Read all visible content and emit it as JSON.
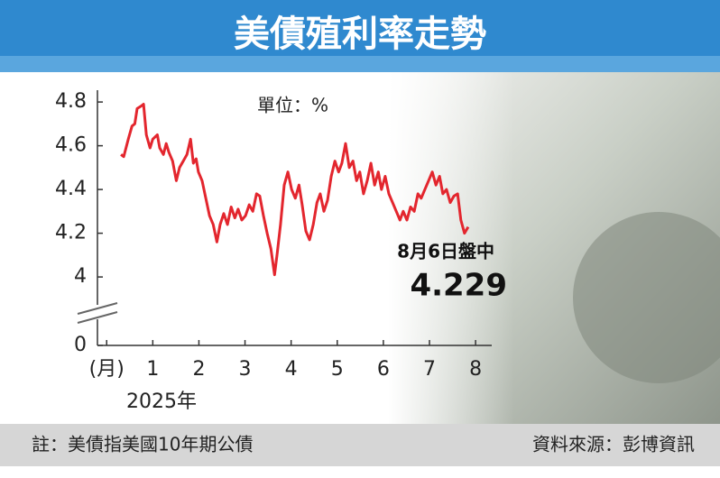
{
  "chart_data": {
    "type": "line",
    "title": "美債殖利率走勢",
    "unit_label": "單位：%",
    "x_label": "2025年",
    "annotation": "8月6日盤中",
    "note": "註：美債指美國10年期公債",
    "source": "資料來源：彭博資訊",
    "color": "#e3262e",
    "xlim": [
      -0.2,
      8.35
    ],
    "xticks": [
      {
        "value": 0,
        "label": "(月)"
      },
      1,
      2,
      3,
      4,
      5,
      6,
      7,
      8
    ],
    "ylim": [
      3.687,
      4.854
    ],
    "yticks": [
      0,
      4.0,
      4.2,
      4.4,
      4.6,
      4.8
    ],
    "axis_break": true,
    "x": [
      0.31,
      0.37,
      0.47,
      0.55,
      0.61,
      0.66,
      0.74,
      0.8,
      0.86,
      0.94,
      1.0,
      1.1,
      1.15,
      1.23,
      1.29,
      1.35,
      1.43,
      1.51,
      1.58,
      1.66,
      1.74,
      1.82,
      1.88,
      1.94,
      1.99,
      2.07,
      2.15,
      2.23,
      2.31,
      2.39,
      2.46,
      2.54,
      2.62,
      2.7,
      2.78,
      2.85,
      2.93,
      3.01,
      3.09,
      3.17,
      3.25,
      3.32,
      3.4,
      3.48,
      3.56,
      3.64,
      3.7,
      3.77,
      3.85,
      3.93,
      4.01,
      4.09,
      4.17,
      4.24,
      4.32,
      4.4,
      4.48,
      4.56,
      4.63,
      4.71,
      4.79,
      4.87,
      4.95,
      5.03,
      5.1,
      5.18,
      5.26,
      5.34,
      5.42,
      5.49,
      5.57,
      5.65,
      5.73,
      5.81,
      5.89,
      5.96,
      6.04,
      6.12,
      6.2,
      6.28,
      6.36,
      6.43,
      6.51,
      6.59,
      6.67,
      6.75,
      6.82,
      6.9,
      6.98,
      7.06,
      7.14,
      7.22,
      7.29,
      7.37,
      7.45,
      7.53,
      7.61,
      7.68,
      7.76,
      7.84
    ],
    "values": [
      4.56,
      4.55,
      4.63,
      4.69,
      4.7,
      4.77,
      4.78,
      4.79,
      4.65,
      4.59,
      4.63,
      4.65,
      4.59,
      4.56,
      4.61,
      4.57,
      4.53,
      4.44,
      4.5,
      4.53,
      4.56,
      4.63,
      4.52,
      4.54,
      4.48,
      4.44,
      4.36,
      4.28,
      4.24,
      4.16,
      4.24,
      4.29,
      4.24,
      4.32,
      4.27,
      4.31,
      4.26,
      4.28,
      4.33,
      4.3,
      4.38,
      4.37,
      4.28,
      4.2,
      4.13,
      4.01,
      4.11,
      4.24,
      4.42,
      4.48,
      4.4,
      4.36,
      4.42,
      4.33,
      4.21,
      4.17,
      4.24,
      4.34,
      4.38,
      4.3,
      4.35,
      4.46,
      4.53,
      4.48,
      4.52,
      4.61,
      4.5,
      4.53,
      4.44,
      4.48,
      4.38,
      4.44,
      4.52,
      4.42,
      4.48,
      4.4,
      4.46,
      4.38,
      4.34,
      4.3,
      4.26,
      4.3,
      4.26,
      4.32,
      4.3,
      4.38,
      4.36,
      4.4,
      4.44,
      4.48,
      4.42,
      4.46,
      4.38,
      4.4,
      4.34,
      4.37,
      4.38,
      4.26,
      4.2,
      4.229
    ]
  }
}
